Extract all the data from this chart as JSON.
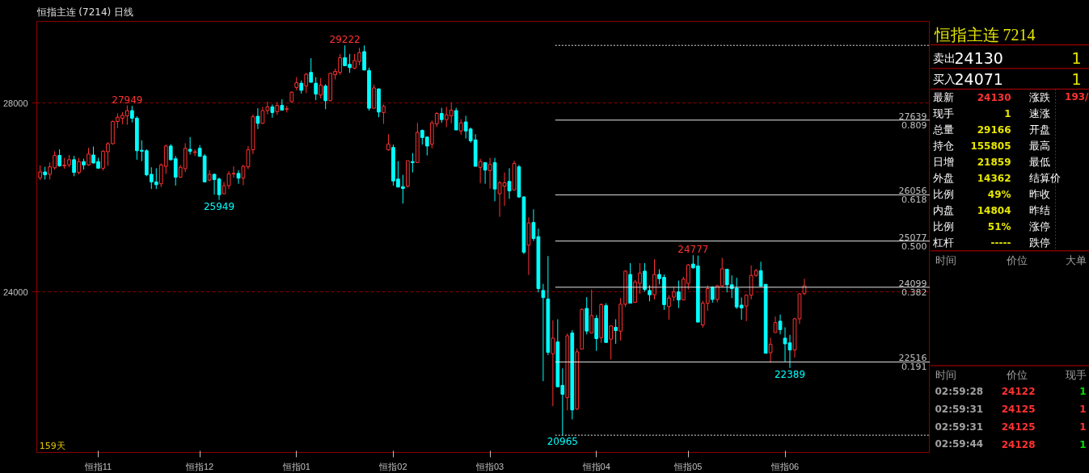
{
  "chart_data": [
    {
      "type": "candlestick",
      "title": "恒指主连 (7214) 日线",
      "categories": [
        null,
        null,
        null,
        null,
        null,
        null,
        null,
        null,
        null,
        null,
        null,
        null,
        "恒指11",
        null,
        null,
        null,
        null,
        null,
        null,
        null,
        null,
        null,
        null,
        null,
        null,
        null,
        null,
        null,
        null,
        null,
        null,
        null,
        null,
        "恒指12",
        null,
        null,
        null,
        null,
        null,
        null,
        null,
        null,
        null,
        null,
        null,
        null,
        null,
        null,
        null,
        null,
        null,
        null,
        null,
        "恒指01",
        null,
        null,
        null,
        null,
        null,
        null,
        null,
        null,
        null,
        null,
        null,
        null,
        null,
        null,
        null,
        null,
        null,
        null,
        null,
        "恒指02",
        null,
        null,
        null,
        null,
        null,
        null,
        null,
        null,
        null,
        null,
        null,
        null,
        null,
        null,
        null,
        null,
        null,
        null,
        null,
        "恒指03",
        null,
        null,
        null,
        null,
        null,
        null,
        null,
        null,
        null,
        null,
        null,
        null,
        null,
        null,
        null,
        null,
        null,
        null,
        null,
        null,
        null,
        "恒指04",
        null,
        null,
        null,
        null,
        null,
        null,
        null,
        null,
        null,
        null,
        null,
        null,
        null,
        null,
        null,
        null,
        null,
        null,
        "恒指05",
        null,
        null,
        null,
        null,
        null,
        null,
        null,
        null,
        null,
        null,
        null,
        null,
        null,
        null,
        null,
        null,
        null,
        null,
        null,
        "恒指06",
        null,
        null,
        null,
        null
      ],
      "ohlc": [
        [
          26420,
          26680,
          26370,
          26540
        ],
        [
          26540,
          26650,
          26380,
          26480
        ],
        [
          26490,
          26740,
          26380,
          26650
        ],
        [
          26630,
          26980,
          26590,
          26890
        ],
        [
          26890,
          27020,
          26650,
          26670
        ],
        [
          26670,
          26840,
          26610,
          26690
        ],
        [
          26690,
          26900,
          26640,
          26800
        ],
        [
          26800,
          26880,
          26450,
          26530
        ],
        [
          26530,
          26840,
          26490,
          26760
        ],
        [
          26760,
          26820,
          26590,
          26690
        ],
        [
          26690,
          27050,
          26670,
          26920
        ],
        [
          26900,
          27080,
          26720,
          26730
        ],
        [
          26760,
          26840,
          26620,
          26620
        ],
        [
          26620,
          27000,
          26570,
          26980
        ],
        [
          26970,
          27170,
          26670,
          27140
        ],
        [
          27140,
          27630,
          27120,
          27610
        ],
        [
          27610,
          27780,
          27470,
          27700
        ],
        [
          27680,
          27810,
          27550,
          27740
        ],
        [
          27730,
          27949,
          27540,
          27840
        ],
        [
          27840,
          27940,
          27590,
          27680
        ],
        [
          27680,
          27720,
          26800,
          26990
        ],
        [
          27000,
          27210,
          26770,
          26980
        ],
        [
          26990,
          27020,
          26450,
          26480
        ],
        [
          26490,
          26640,
          26180,
          26330
        ],
        [
          26330,
          26620,
          26180,
          26270
        ],
        [
          26290,
          26720,
          26220,
          26690
        ],
        [
          26660,
          27120,
          26500,
          27090
        ],
        [
          27090,
          27130,
          26780,
          26800
        ],
        [
          26820,
          26880,
          26250,
          26430
        ],
        [
          26430,
          26690,
          26430,
          26640
        ],
        [
          26610,
          27150,
          26540,
          27040
        ],
        [
          27020,
          27280,
          26910,
          26980
        ],
        [
          26950,
          27020,
          26880,
          26970
        ],
        [
          27040,
          27110,
          26870,
          26870
        ],
        [
          26880,
          26920,
          26320,
          26330
        ],
        [
          26370,
          26580,
          26340,
          26490
        ],
        [
          26490,
          26510,
          26060,
          26380
        ],
        [
          26390,
          26420,
          25949,
          26060
        ],
        [
          26080,
          26330,
          26070,
          26250
        ],
        [
          26250,
          26560,
          26180,
          26500
        ],
        [
          26500,
          26660,
          26420,
          26510
        ],
        [
          26510,
          26580,
          26290,
          26410
        ],
        [
          26410,
          26690,
          26260,
          26660
        ],
        [
          26650,
          27090,
          26600,
          27010
        ],
        [
          27010,
          27760,
          26920,
          27710
        ],
        [
          27720,
          27890,
          27450,
          27570
        ],
        [
          27570,
          27920,
          27560,
          27840
        ],
        [
          27840,
          28030,
          27760,
          27920
        ],
        [
          27920,
          27970,
          27690,
          27800
        ],
        [
          27820,
          28020,
          27750,
          27950
        ],
        [
          27950,
          28080,
          27850,
          27850
        ],
        [
          27870,
          27940,
          27800,
          27880
        ],
        [
          28030,
          28250,
          28010,
          28230
        ],
        [
          28330,
          28550,
          28270,
          28430
        ],
        [
          28420,
          28480,
          28200,
          28270
        ],
        [
          28360,
          28640,
          28210,
          28610
        ],
        [
          28650,
          28950,
          28430,
          28440
        ],
        [
          28420,
          28550,
          28060,
          28190
        ],
        [
          28170,
          28530,
          28100,
          28380
        ],
        [
          28360,
          28400,
          27870,
          28050
        ],
        [
          28050,
          28640,
          28040,
          28630
        ],
        [
          28600,
          28730,
          28500,
          28670
        ],
        [
          28650,
          29040,
          28600,
          28960
        ],
        [
          28960,
          29222,
          28790,
          28790
        ],
        [
          28820,
          29040,
          28640,
          28750
        ],
        [
          28740,
          29040,
          28720,
          28900
        ],
        [
          28880,
          29170,
          28800,
          29070
        ],
        [
          29090,
          29220,
          28690,
          28700
        ],
        [
          28690,
          28750,
          27840,
          27890
        ],
        [
          27890,
          28390,
          27890,
          28320
        ],
        [
          28300,
          28310,
          27700,
          27810
        ],
        [
          27800,
          27970,
          27560,
          27930
        ],
        [
          27010,
          27340,
          26990,
          27130
        ],
        [
          27060,
          27120,
          26250,
          26350
        ],
        [
          26390,
          26770,
          26220,
          26220
        ],
        [
          26230,
          26480,
          25870,
          26190
        ],
        [
          26240,
          26780,
          26210,
          26780
        ],
        [
          26760,
          26940,
          26530,
          26740
        ],
        [
          26740,
          27580,
          26740,
          27380
        ],
        [
          27420,
          27440,
          27120,
          27270
        ],
        [
          27280,
          27290,
          26890,
          27090
        ],
        [
          27130,
          27630,
          27040,
          27580
        ],
        [
          27560,
          27810,
          27490,
          27780
        ],
        [
          27780,
          27900,
          27580,
          27650
        ],
        [
          27650,
          27920,
          27490,
          27750
        ],
        [
          27730,
          28010,
          27570,
          27850
        ],
        [
          27840,
          27900,
          27430,
          27430
        ],
        [
          27410,
          27660,
          27330,
          27580
        ],
        [
          27600,
          27730,
          27250,
          27410
        ],
        [
          27450,
          27480,
          27160,
          27200
        ],
        [
          27220,
          27340,
          26660,
          26660
        ],
        [
          26640,
          26820,
          26300,
          26760
        ],
        [
          26740,
          26740,
          26290,
          26580
        ],
        [
          26570,
          26840,
          26190,
          26700
        ],
        [
          26740,
          26840,
          25920,
          26180
        ],
        [
          26080,
          26350,
          25590,
          26310
        ],
        [
          26240,
          26530,
          25820,
          26310
        ],
        [
          26340,
          26620,
          25970,
          26140
        ],
        [
          26160,
          26780,
          26150,
          26720
        ],
        [
          26650,
          26690,
          25990,
          26010
        ],
        [
          26010,
          26030,
          24800,
          24840
        ],
        [
          24990,
          25580,
          24360,
          25460
        ],
        [
          25470,
          25750,
          25080,
          25130
        ],
        [
          25170,
          25340,
          23990,
          24070
        ],
        [
          24030,
          24170,
          22110,
          23880
        ],
        [
          23850,
          24760,
          22660,
          22720
        ],
        [
          22690,
          23400,
          21580,
          23020
        ],
        [
          22940,
          23420,
          21990,
          21990
        ],
        [
          22020,
          22380,
          20965,
          21830
        ],
        [
          21760,
          23120,
          21490,
          23070
        ],
        [
          23130,
          23190,
          21300,
          21500
        ],
        [
          21520,
          22800,
          21500,
          22730
        ],
        [
          22790,
          23650,
          22780,
          23630
        ],
        [
          23650,
          23890,
          23100,
          23170
        ],
        [
          23130,
          24050,
          23130,
          23500
        ],
        [
          23440,
          23510,
          22750,
          23010
        ],
        [
          23030,
          23760,
          22920,
          23730
        ],
        [
          23710,
          23760,
          22920,
          22930
        ],
        [
          23000,
          23290,
          22570,
          23280
        ],
        [
          23250,
          23420,
          22900,
          23180
        ],
        [
          23170,
          23870,
          22970,
          23740
        ],
        [
          23740,
          24460,
          23680,
          24440
        ],
        [
          24370,
          24610,
          23760,
          23760
        ],
        [
          23780,
          24250,
          23770,
          24210
        ],
        [
          24180,
          24610,
          23960,
          24400
        ],
        [
          24440,
          24610,
          24010,
          24050
        ],
        [
          24030,
          24140,
          23800,
          23940
        ],
        [
          23940,
          24690,
          23840,
          24370
        ],
        [
          24370,
          24480,
          24160,
          24280
        ],
        [
          24310,
          24370,
          23620,
          23730
        ],
        [
          23690,
          23930,
          23410,
          23870
        ],
        [
          23890,
          24100,
          23810,
          24000
        ],
        [
          24000,
          24240,
          23660,
          23830
        ],
        [
          23830,
          24320,
          23830,
          24270
        ],
        [
          24180,
          24590,
          24050,
          24570
        ],
        [
          24590,
          24777,
          24490,
          24510
        ],
        [
          24550,
          24770,
          23360,
          23360
        ],
        [
          23300,
          23810,
          23240,
          23760
        ],
        [
          23760,
          24140,
          23600,
          24070
        ],
        [
          24100,
          24120,
          23770,
          23840
        ],
        [
          23840,
          24150,
          23780,
          24130
        ],
        [
          24130,
          24720,
          24100,
          24490
        ],
        [
          24480,
          24480,
          23990,
          24150
        ],
        [
          24150,
          24350,
          23870,
          24070
        ],
        [
          24080,
          24300,
          23640,
          23680
        ],
        [
          23720,
          23880,
          23410,
          23660
        ],
        [
          23700,
          23950,
          23380,
          23930
        ],
        [
          23930,
          24560,
          23840,
          24350
        ],
        [
          24350,
          24490,
          24320,
          24450
        ],
        [
          24450,
          24640,
          24120,
          24120
        ],
        [
          24160,
          24160,
          22700,
          22700
        ],
        [
          22710,
          23030,
          22500,
          22890
        ],
        [
          23140,
          23480,
          23140,
          23350
        ],
        [
          23380,
          23520,
          23100,
          23200
        ],
        [
          23020,
          23250,
          22520,
          22900
        ],
        [
          22920,
          23090,
          22389,
          22770
        ],
        [
          22770,
          23450,
          22610,
          23430
        ],
        [
          23430,
          23970,
          23320,
          23960
        ],
        [
          23970,
          24280,
          23930,
          24130
        ]
      ],
      "ylim": [
        20600,
        29730
      ],
      "yticks": [
        28000,
        24000
      ],
      "grid": "y",
      "ref_lines": [
        {
          "axis": "y",
          "value": 29222,
          "line_style": "dotted"
        },
        {
          "axis": "y",
          "value": 27639,
          "label": "27639"
        },
        {
          "axis": "y",
          "value": 26056,
          "label": "26056"
        },
        {
          "axis": "y",
          "value": 25077,
          "label": "25077"
        },
        {
          "axis": "y",
          "value": 24099,
          "label": "24099"
        },
        {
          "axis": "y",
          "value": 22516,
          "label": "22516"
        },
        {
          "axis": "y",
          "value": 20965,
          "line_style": "dotted"
        }
      ],
      "annotations": [
        "159天",
        {
          "text": "29222",
          "y": 29222
        },
        {
          "text": "27949",
          "y": 27949
        },
        {
          "text": "25949",
          "y": 25949
        },
        {
          "text": "24777",
          "y": 24777
        },
        {
          "text": "22389",
          "y": 22389
        },
        {
          "text": "20965",
          "y": 20965
        },
        {
          "text": "0.809",
          "y": 27639
        },
        {
          "text": "0.618",
          "y": 26056
        },
        {
          "text": "0.500",
          "y": 25077
        },
        {
          "text": "0.382",
          "y": 24099
        },
        {
          "text": "0.191",
          "y": 22516
        }
      ]
    },
    {
      "type": "other",
      "title": "恒指主连 7214",
      "annotations": [
        "卖出",
        "24130",
        "1",
        "买入",
        "24071",
        "1",
        "最新",
        "24130",
        "涨跌",
        "193/",
        "现手",
        "1",
        "速涨",
        "总量",
        "29166",
        "开盘",
        "持仓",
        "155805",
        "最高",
        "日增",
        "21859",
        "最低",
        "外盘",
        "14362",
        "结算价",
        "比例",
        "49%",
        "昨收",
        "内盘",
        "14804",
        "昨结",
        "比例",
        "51%",
        "涨停",
        "杠杆",
        "-----",
        "跌停",
        "时间",
        "价位",
        "大单",
        "时间",
        "价位",
        "现手",
        "02:59:28",
        "24122",
        "1",
        "02:59:31",
        "24125",
        "1",
        "02:59:31",
        "24125",
        "1",
        "02:59:44",
        "24128",
        "1"
      ]
    }
  ]
}
